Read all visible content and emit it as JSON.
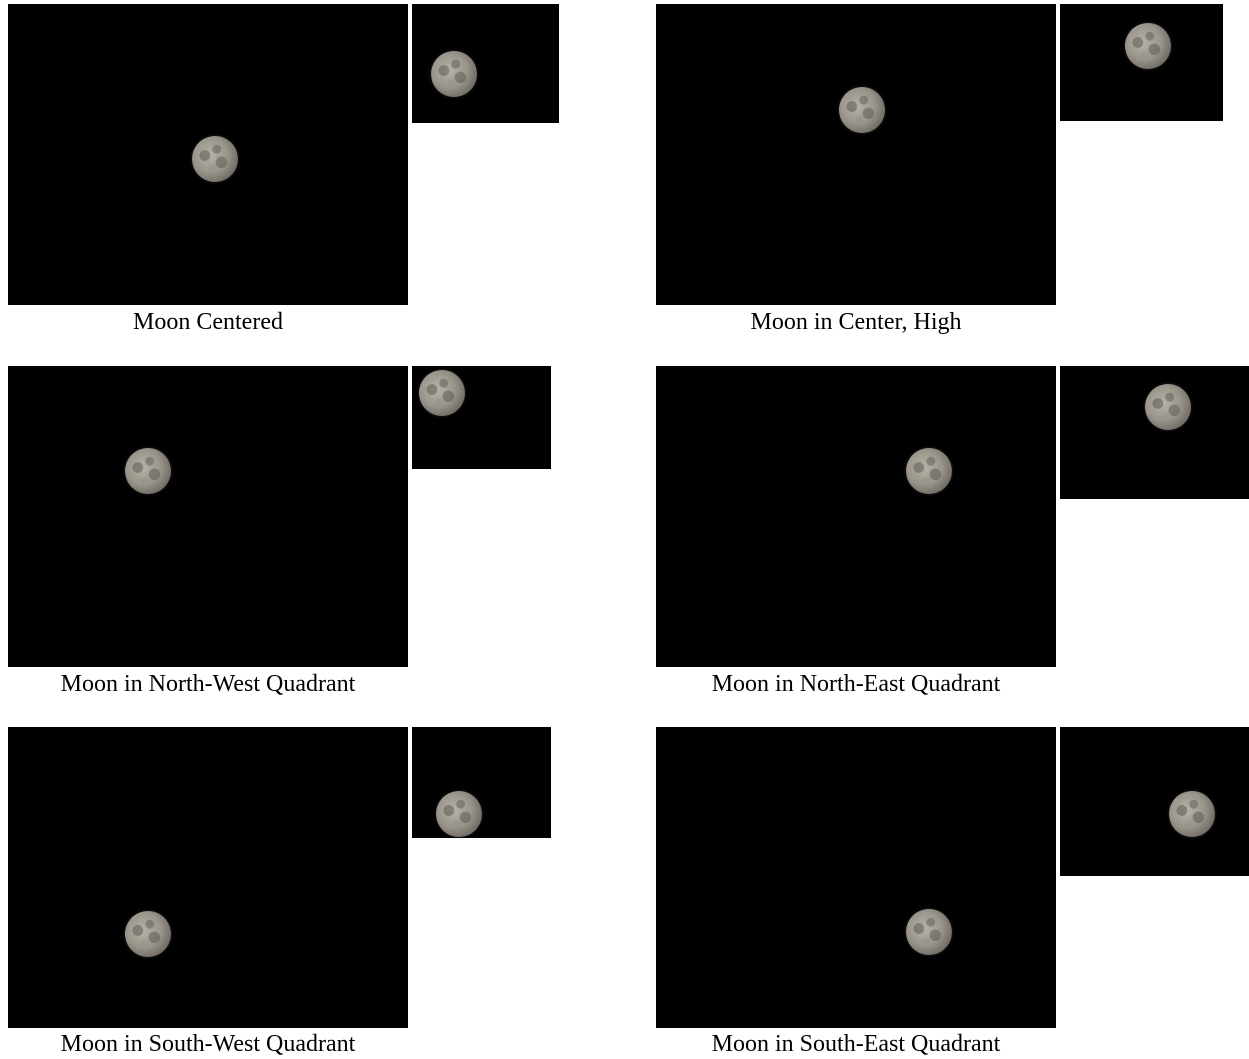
{
  "figures": [
    {
      "caption": "Moon Centered"
    },
    {
      "caption": "Moon in Center, High"
    },
    {
      "caption": "Moon in North-West Quadrant"
    },
    {
      "caption": "Moon in North-East Quadrant"
    },
    {
      "caption": "Moon in South-West Quadrant"
    },
    {
      "caption": "Moon in South-East Quadrant"
    }
  ],
  "colors": {
    "sky": "#000000",
    "moon": "#9a958b",
    "page": "#ffffff"
  }
}
